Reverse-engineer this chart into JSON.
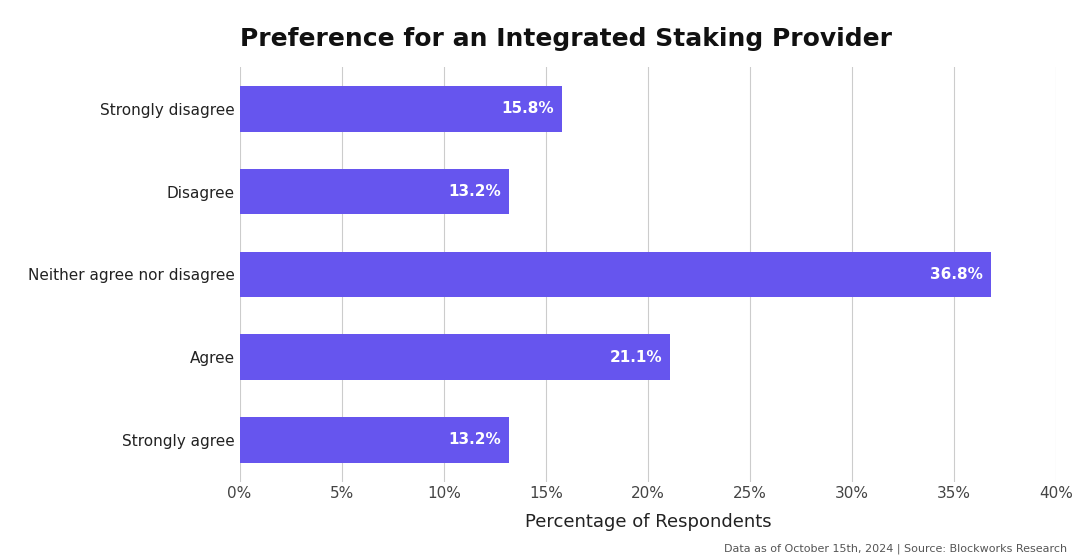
{
  "title": "Preference for an Integrated Staking Provider",
  "categories": [
    "Strongly agree",
    "Agree",
    "Neither agree nor disagree",
    "Disagree",
    "Strongly disagree"
  ],
  "values": [
    13.2,
    21.1,
    36.8,
    13.2,
    15.8
  ],
  "bar_color": "#6655ee",
  "label_color": "#ffffff",
  "xlabel": "Percentage of Respondents",
  "xlim": [
    0,
    40
  ],
  "xticks": [
    0,
    5,
    10,
    15,
    20,
    25,
    30,
    35,
    40
  ],
  "xtick_labels": [
    "0%",
    "5%",
    "10%",
    "15%",
    "20%",
    "25%",
    "30%",
    "35%",
    "40%"
  ],
  "title_fontsize": 18,
  "label_fontsize": 11,
  "tick_fontsize": 11,
  "xlabel_fontsize": 13,
  "footnote": "Data as of October 15th, 2024 | Source: Blockworks Research",
  "background_color": "#ffffff",
  "bar_height": 0.55,
  "watermark_text": "Blockworks   Research"
}
